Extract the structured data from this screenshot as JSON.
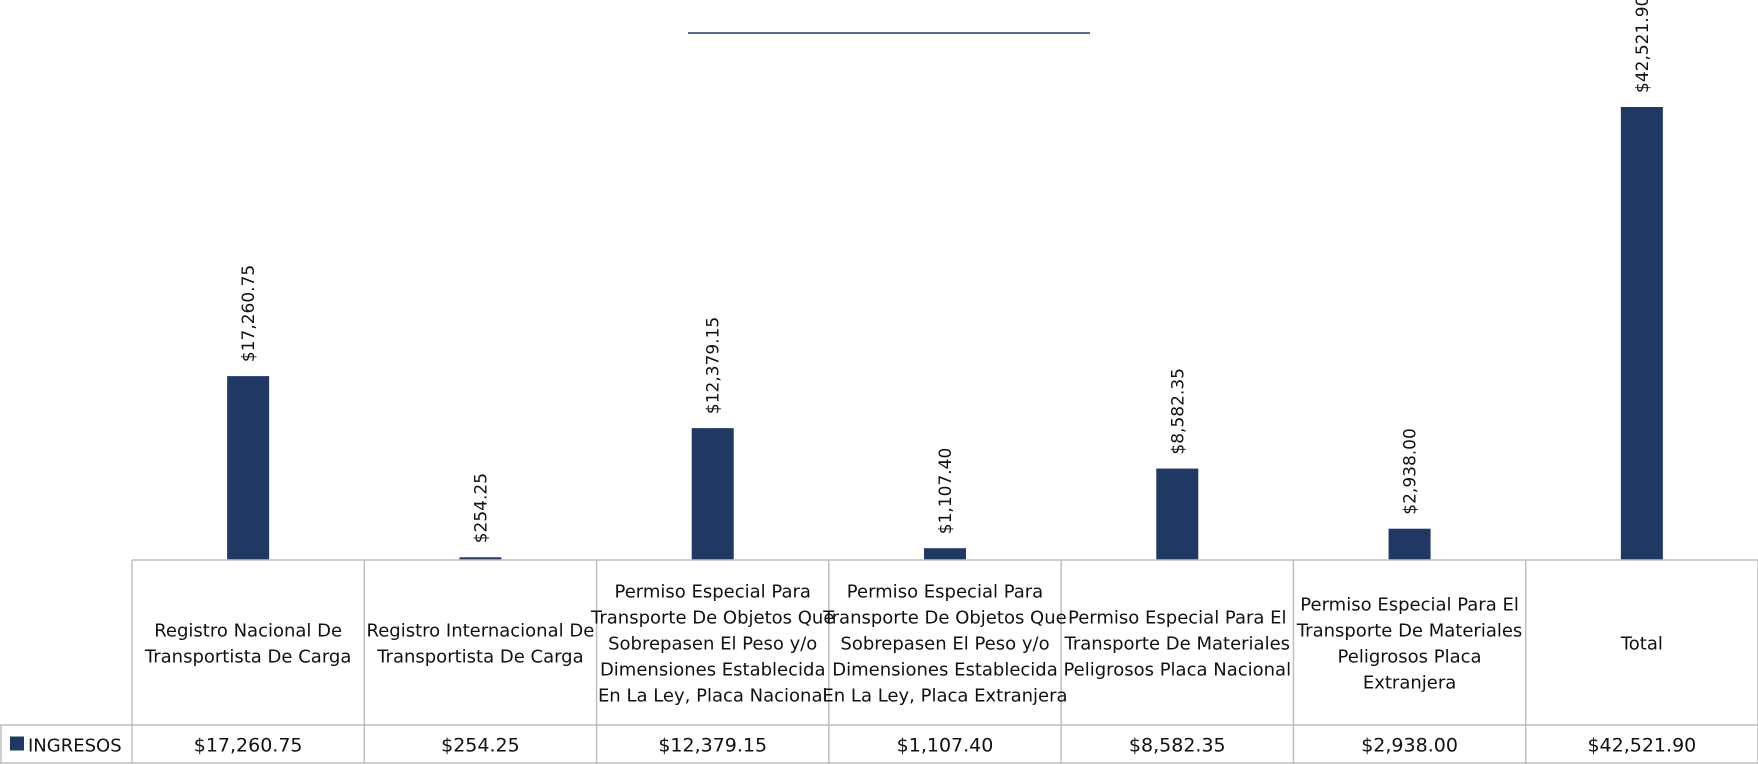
{
  "chart_data": {
    "type": "bar",
    "title": "",
    "categories": [
      "Registro Nacional De Transportista De Carga",
      "Registro Internacional De Transportista De Carga",
      "Permiso Especial Para Transporte De Objetos Que Sobrepasen El Peso y/o Dimensiones Establecida En La Ley, Placa Nacional",
      "Permiso Especial Para Transporte De Objetos Que Sobrepasen El Peso y/o Dimensiones Establecida En La Ley, Placa Extranjera",
      "Permiso Especial Para El Transporte De Materiales Peligrosos Placa Nacional",
      "Permiso Especial Para El Transporte De Materiales Peligrosos Placa Extranjera",
      "Total"
    ],
    "category_lines": [
      [
        "Registro Nacional De",
        "Transportista De Carga"
      ],
      [
        "Registro Internacional De",
        "Transportista De Carga"
      ],
      [
        "Permiso Especial Para",
        "Transporte De Objetos Que",
        "Sobrepasen El Peso y/o",
        "Dimensiones Establecida",
        "En La Ley, Placa Nacional"
      ],
      [
        "Permiso Especial Para",
        "Transporte De Objetos Que",
        "Sobrepasen El Peso y/o",
        "Dimensiones Establecida",
        "En La Ley, Placa Extranjera"
      ],
      [
        "Permiso Especial Para El",
        "Transporte De Materiales",
        "Peligrosos Placa Nacional"
      ],
      [
        "Permiso Especial Para El",
        "Transporte De Materiales",
        "Peligrosos Placa",
        "Extranjera"
      ],
      [
        "Total"
      ]
    ],
    "series": [
      {
        "name": "INGRESOS",
        "values": [
          17260.75,
          254.25,
          12379.15,
          1107.4,
          8582.35,
          2938.0,
          42521.9
        ],
        "labels": [
          "$17,260.75",
          "$254.25",
          "$12,379.15",
          "$1,107.40",
          "$8,582.35",
          "$2,938.00",
          "$42,521.90"
        ],
        "color": "#1f3864"
      }
    ],
    "ylim": [
      0,
      42521.9
    ],
    "grid": false,
    "legend": "data-table",
    "data_table": true
  }
}
